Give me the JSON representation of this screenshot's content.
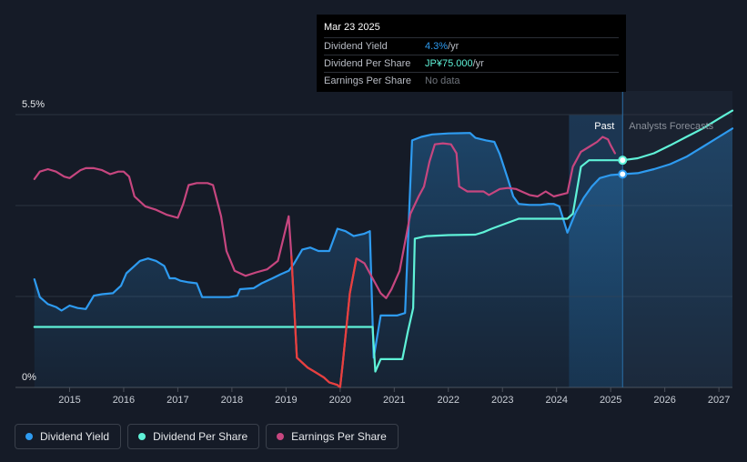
{
  "chart_data": {
    "type": "line",
    "x_unit": "year",
    "xlim": [
      2014.0,
      2027.25
    ],
    "ylim": [
      0,
      5.5
    ],
    "y_tick_labels": [
      "5.5%",
      "0%"
    ],
    "x_tick_labels": [
      "2015",
      "2016",
      "2017",
      "2018",
      "2019",
      "2020",
      "2021",
      "2022",
      "2023",
      "2024",
      "2025",
      "2026",
      "2027"
    ],
    "past_label": "Past",
    "forecast_label": "Analysts Forecasts",
    "forecast_start": 2024.23,
    "now_date": 2025.22,
    "series": [
      {
        "name": "Dividend Yield",
        "color": "#2e9bf0",
        "area": true,
        "points": [
          [
            2014.35,
            2.18
          ],
          [
            2014.45,
            1.82
          ],
          [
            2014.6,
            1.68
          ],
          [
            2014.75,
            1.62
          ],
          [
            2014.85,
            1.55
          ],
          [
            2015.0,
            1.65
          ],
          [
            2015.15,
            1.6
          ],
          [
            2015.3,
            1.58
          ],
          [
            2015.45,
            1.85
          ],
          [
            2015.6,
            1.88
          ],
          [
            2015.8,
            1.9
          ],
          [
            2015.95,
            2.05
          ],
          [
            2016.05,
            2.3
          ],
          [
            2016.2,
            2.45
          ],
          [
            2016.3,
            2.55
          ],
          [
            2016.45,
            2.6
          ],
          [
            2016.6,
            2.55
          ],
          [
            2016.75,
            2.45
          ],
          [
            2016.85,
            2.2
          ],
          [
            2016.95,
            2.2
          ],
          [
            2017.05,
            2.15
          ],
          [
            2017.2,
            2.12
          ],
          [
            2017.35,
            2.1
          ],
          [
            2017.45,
            1.82
          ],
          [
            2017.6,
            1.82
          ],
          [
            2017.8,
            1.82
          ],
          [
            2017.95,
            1.82
          ],
          [
            2018.1,
            1.85
          ],
          [
            2018.15,
            1.98
          ],
          [
            2018.4,
            2.0
          ],
          [
            2018.55,
            2.1
          ],
          [
            2018.75,
            2.2
          ],
          [
            2018.9,
            2.28
          ],
          [
            2019.05,
            2.35
          ],
          [
            2019.15,
            2.5
          ],
          [
            2019.3,
            2.78
          ],
          [
            2019.45,
            2.82
          ],
          [
            2019.6,
            2.75
          ],
          [
            2019.8,
            2.75
          ],
          [
            2019.95,
            3.2
          ],
          [
            2020.1,
            3.15
          ],
          [
            2020.25,
            3.05
          ],
          [
            2020.45,
            3.1
          ],
          [
            2020.55,
            3.15
          ],
          [
            2020.62,
            0.6
          ],
          [
            2020.75,
            1.45
          ],
          [
            2020.9,
            1.45
          ],
          [
            2021.05,
            1.45
          ],
          [
            2021.2,
            1.5
          ],
          [
            2021.33,
            4.98
          ],
          [
            2021.5,
            5.05
          ],
          [
            2021.7,
            5.1
          ],
          [
            2022.0,
            5.12
          ],
          [
            2022.4,
            5.13
          ],
          [
            2022.5,
            5.03
          ],
          [
            2022.7,
            4.98
          ],
          [
            2022.85,
            4.95
          ],
          [
            2022.95,
            4.7
          ],
          [
            2023.1,
            4.2
          ],
          [
            2023.2,
            3.85
          ],
          [
            2023.3,
            3.7
          ],
          [
            2023.5,
            3.68
          ],
          [
            2023.7,
            3.68
          ],
          [
            2023.85,
            3.7
          ],
          [
            2023.95,
            3.7
          ],
          [
            2024.05,
            3.65
          ],
          [
            2024.2,
            3.12
          ],
          [
            2024.35,
            3.52
          ],
          [
            2024.5,
            3.82
          ],
          [
            2024.65,
            4.05
          ],
          [
            2024.8,
            4.22
          ],
          [
            2025.0,
            4.28
          ],
          [
            2025.22,
            4.3
          ]
        ]
      },
      {
        "name": "Dividend Yield forecast",
        "color": "#2e9bf0",
        "area": true,
        "points": [
          [
            2025.22,
            4.3
          ],
          [
            2025.5,
            4.32
          ],
          [
            2025.8,
            4.4
          ],
          [
            2026.1,
            4.5
          ],
          [
            2026.4,
            4.65
          ],
          [
            2026.7,
            4.85
          ],
          [
            2027.0,
            5.05
          ],
          [
            2027.25,
            5.22
          ]
        ]
      },
      {
        "name": "Dividend Per Share",
        "color": "#5ff2d8",
        "area": false,
        "points": [
          [
            2014.35,
            1.22
          ],
          [
            2015.0,
            1.22
          ],
          [
            2016.0,
            1.22
          ],
          [
            2017.0,
            1.22
          ],
          [
            2018.0,
            1.22
          ],
          [
            2019.0,
            1.22
          ],
          [
            2020.0,
            1.22
          ],
          [
            2020.6,
            1.22
          ],
          [
            2020.65,
            0.32
          ],
          [
            2020.75,
            0.57
          ],
          [
            2021.0,
            0.57
          ],
          [
            2021.15,
            0.57
          ],
          [
            2021.25,
            1.12
          ],
          [
            2021.35,
            1.6
          ],
          [
            2021.38,
            3.0
          ],
          [
            2021.6,
            3.05
          ],
          [
            2022.0,
            3.07
          ],
          [
            2022.5,
            3.08
          ],
          [
            2022.65,
            3.13
          ],
          [
            2022.8,
            3.2
          ],
          [
            2023.0,
            3.28
          ],
          [
            2023.3,
            3.4
          ],
          [
            2023.6,
            3.4
          ],
          [
            2023.9,
            3.4
          ],
          [
            2024.2,
            3.4
          ],
          [
            2024.3,
            3.5
          ],
          [
            2024.45,
            4.45
          ],
          [
            2024.6,
            4.58
          ],
          [
            2024.8,
            4.58
          ],
          [
            2025.0,
            4.58
          ],
          [
            2025.22,
            4.58
          ]
        ]
      },
      {
        "name": "Dividend Per Share forecast",
        "color": "#5ff2d8",
        "area": false,
        "points": [
          [
            2025.22,
            4.58
          ],
          [
            2025.5,
            4.62
          ],
          [
            2025.8,
            4.72
          ],
          [
            2026.1,
            4.88
          ],
          [
            2026.4,
            5.05
          ],
          [
            2026.7,
            5.22
          ],
          [
            2027.0,
            5.42
          ],
          [
            2027.25,
            5.58
          ]
        ]
      },
      {
        "name": "Earnings Per Share",
        "color": "#c6467f",
        "area": false,
        "points": [
          [
            2014.35,
            4.2
          ],
          [
            2014.45,
            4.35
          ],
          [
            2014.6,
            4.4
          ],
          [
            2014.75,
            4.35
          ],
          [
            2014.9,
            4.25
          ],
          [
            2015.0,
            4.22
          ],
          [
            2015.1,
            4.3
          ],
          [
            2015.2,
            4.38
          ],
          [
            2015.3,
            4.42
          ],
          [
            2015.45,
            4.42
          ],
          [
            2015.6,
            4.38
          ],
          [
            2015.75,
            4.3
          ],
          [
            2015.9,
            4.35
          ],
          [
            2016.0,
            4.35
          ],
          [
            2016.1,
            4.25
          ],
          [
            2016.2,
            3.85
          ],
          [
            2016.4,
            3.65
          ],
          [
            2016.6,
            3.58
          ],
          [
            2016.8,
            3.48
          ],
          [
            2017.0,
            3.42
          ],
          [
            2017.1,
            3.7
          ],
          [
            2017.2,
            4.08
          ],
          [
            2017.35,
            4.12
          ],
          [
            2017.55,
            4.12
          ],
          [
            2017.65,
            4.08
          ],
          [
            2017.8,
            3.45
          ],
          [
            2017.9,
            2.75
          ],
          [
            2018.05,
            2.35
          ],
          [
            2018.25,
            2.25
          ],
          [
            2018.45,
            2.32
          ],
          [
            2018.65,
            2.38
          ],
          [
            2018.85,
            2.55
          ],
          [
            2018.95,
            3.0
          ],
          [
            2019.05,
            3.45
          ],
          [
            2019.1,
            2.65
          ],
          [
            2019.2,
            0.6
          ],
          [
            2019.4,
            0.4
          ],
          [
            2019.55,
            0.3
          ],
          [
            2019.7,
            0.2
          ],
          [
            2019.8,
            0.1
          ],
          [
            2019.95,
            0.05
          ],
          [
            2020.0,
            0.0
          ],
          [
            2020.05,
            0.5
          ],
          [
            2020.18,
            1.9
          ],
          [
            2020.3,
            2.6
          ],
          [
            2020.45,
            2.5
          ],
          [
            2020.6,
            2.2
          ],
          [
            2020.75,
            1.9
          ],
          [
            2020.85,
            1.8
          ],
          [
            2020.95,
            1.98
          ],
          [
            2021.1,
            2.35
          ],
          [
            2021.3,
            3.5
          ],
          [
            2021.45,
            3.85
          ],
          [
            2021.55,
            4.05
          ],
          [
            2021.65,
            4.55
          ],
          [
            2021.75,
            4.9
          ],
          [
            2021.9,
            4.92
          ],
          [
            2022.05,
            4.9
          ],
          [
            2022.15,
            4.72
          ],
          [
            2022.2,
            4.05
          ],
          [
            2022.35,
            3.95
          ],
          [
            2022.5,
            3.95
          ],
          [
            2022.65,
            3.95
          ],
          [
            2022.75,
            3.88
          ],
          [
            2022.95,
            4.0
          ],
          [
            2023.1,
            4.02
          ],
          [
            2023.25,
            4.0
          ],
          [
            2023.35,
            3.95
          ],
          [
            2023.5,
            3.88
          ],
          [
            2023.65,
            3.85
          ],
          [
            2023.8,
            3.95
          ],
          [
            2023.95,
            3.85
          ],
          [
            2024.05,
            3.88
          ],
          [
            2024.2,
            3.92
          ],
          [
            2024.3,
            4.45
          ],
          [
            2024.45,
            4.75
          ],
          [
            2024.6,
            4.85
          ],
          [
            2024.75,
            4.95
          ],
          [
            2024.85,
            5.05
          ],
          [
            2024.95,
            5.0
          ],
          [
            2025.0,
            4.88
          ],
          [
            2025.08,
            4.72
          ]
        ]
      }
    ]
  },
  "tooltip": {
    "date": "Mar 23 2025",
    "rows": [
      {
        "label": "Dividend Yield",
        "value": "4.3%",
        "unit": " /yr"
      },
      {
        "label": "Dividend Per Share",
        "value": "JP¥75.000",
        "unit": " /yr"
      },
      {
        "label": "Earnings Per Share",
        "value": "No data",
        "unit": ""
      }
    ]
  },
  "legend": [
    {
      "label": "Dividend Yield",
      "color": "#2e9bf0"
    },
    {
      "label": "Dividend Per Share",
      "color": "#5ff2d8"
    },
    {
      "label": "Earnings Per Share",
      "color": "#c6467f"
    }
  ]
}
